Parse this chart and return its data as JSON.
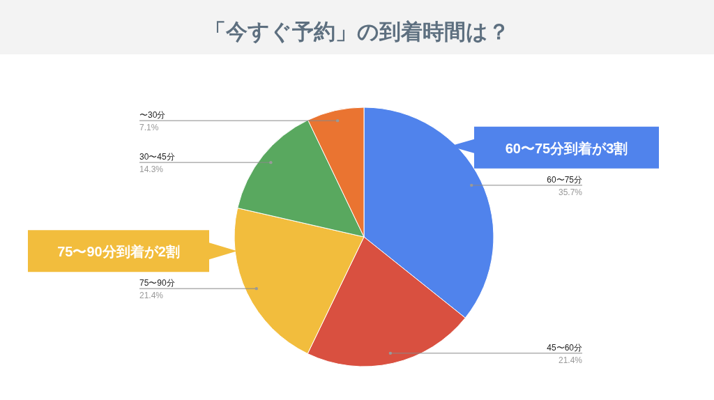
{
  "chart_data": {
    "type": "pie",
    "title": "「今すぐ予約」の到着時間は？",
    "categories": [
      "60〜75分",
      "45〜60分",
      "75〜90分",
      "30〜45分",
      "〜30分"
    ],
    "values": [
      35.7,
      21.4,
      21.4,
      14.3,
      7.1
    ],
    "value_labels": [
      "35.7%",
      "21.4%",
      "21.4%",
      "14.3%",
      "7.1%"
    ],
    "colors": [
      "#5083ec",
      "#d95040",
      "#f2bd3d",
      "#59a85f",
      "#ea7431"
    ],
    "annotations": [
      {
        "text": "60〜75分到着が3割",
        "x": "60〜75分"
      },
      {
        "text": "75〜90分到着が2割",
        "x": "75〜90分"
      }
    ]
  }
}
